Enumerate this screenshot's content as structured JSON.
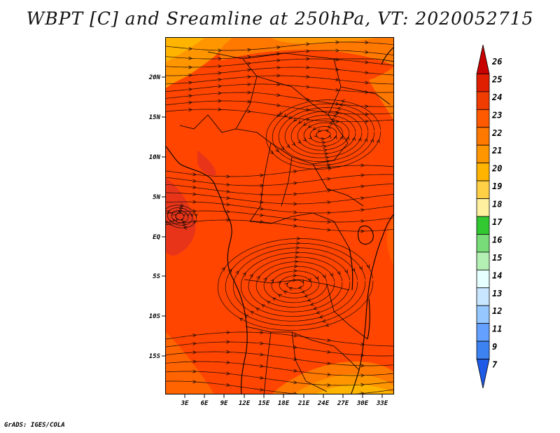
{
  "title": "WBPT [C] and Sreamline at 250hPa, VT: 2020052715",
  "credit": "GrADS: IGES/COLA",
  "map": {
    "lon_ticks": [
      "3E",
      "6E",
      "9E",
      "12E",
      "15E",
      "18E",
      "21E",
      "24E",
      "27E",
      "30E",
      "33E"
    ],
    "lat_ticks": [
      "20N",
      "15N",
      "10N",
      "5N",
      "EQ",
      "5S",
      "10S",
      "15S"
    ],
    "field_colors": {
      "dominant": "#ff4500",
      "warm_core": "#e8351a",
      "edge_orange": "#ff8c00",
      "edge_gold": "#ffb400",
      "edge_pale": "#ffd050"
    },
    "line_color": "#1a0a05"
  },
  "colorbar": {
    "levels": [
      "26",
      "25",
      "24",
      "23",
      "22",
      "21",
      "20",
      "19",
      "18",
      "17",
      "16",
      "15",
      "14",
      "13",
      "12",
      "11",
      "9",
      "7"
    ],
    "colors": [
      "#c80000",
      "#e01e00",
      "#f03c00",
      "#ff5a00",
      "#ff7800",
      "#ff9600",
      "#ffb400",
      "#ffd046",
      "#fff0a0",
      "#32c832",
      "#78dc78",
      "#b4f0b4",
      "#e6ffff",
      "#c8e6ff",
      "#96c8ff",
      "#64a0ff",
      "#3c82f0",
      "#1e5ae6"
    ]
  }
}
